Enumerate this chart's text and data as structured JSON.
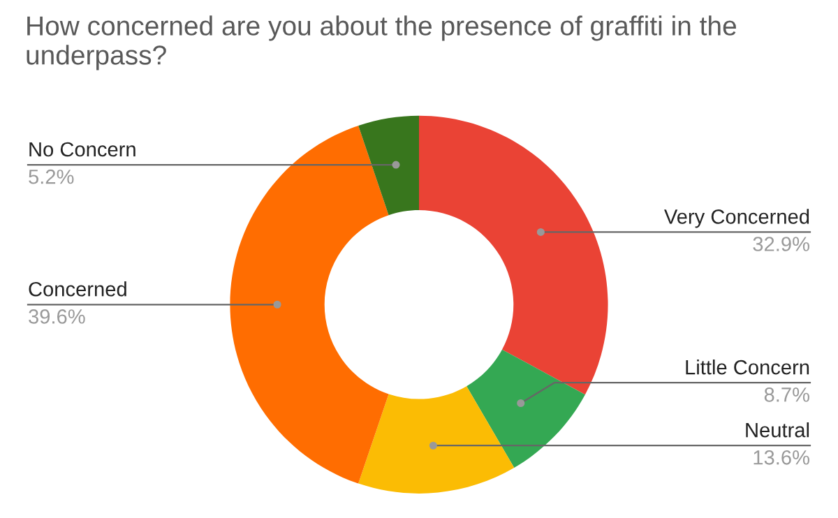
{
  "chart_data": {
    "type": "donut",
    "title": "How concerned are you about the presence of graffiti in the underpass?",
    "categories": [
      "Very Concerned",
      "Little Concern",
      "Neutral",
      "Concerned",
      "No Concern"
    ],
    "values": [
      32.9,
      8.7,
      13.6,
      39.6,
      5.2
    ],
    "colors": [
      "#ea4335",
      "#34a853",
      "#fbbc04",
      "#ff6d01",
      "#38761d"
    ],
    "value_labels": [
      "32.9%",
      "8.7%",
      "13.6%",
      "39.6%",
      "5.2%"
    ]
  }
}
